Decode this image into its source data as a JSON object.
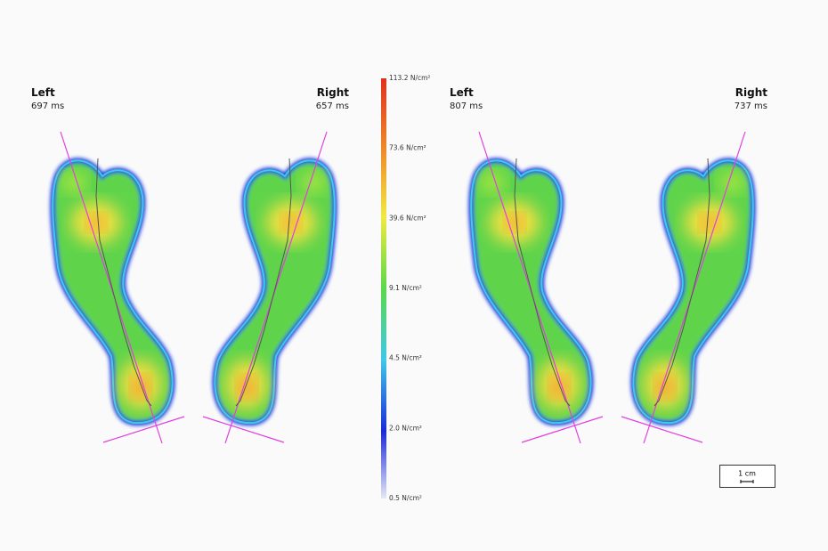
{
  "panels": [
    {
      "left": {
        "label": "Left",
        "time": "697 ms"
      },
      "right": {
        "label": "Right",
        "time": "657 ms"
      }
    },
    {
      "left": {
        "label": "Left",
        "time": "807 ms"
      },
      "right": {
        "label": "Right",
        "time": "737 ms"
      }
    }
  ],
  "color_scale": {
    "labels": [
      "113.2 N/cm²",
      "73.6 N/cm²",
      "39.6 N/cm²",
      "9.1 N/cm²",
      "4.5 N/cm²",
      "2.0 N/cm²",
      "0.5 N/cm²"
    ]
  },
  "scale_bar": "1 cm"
}
